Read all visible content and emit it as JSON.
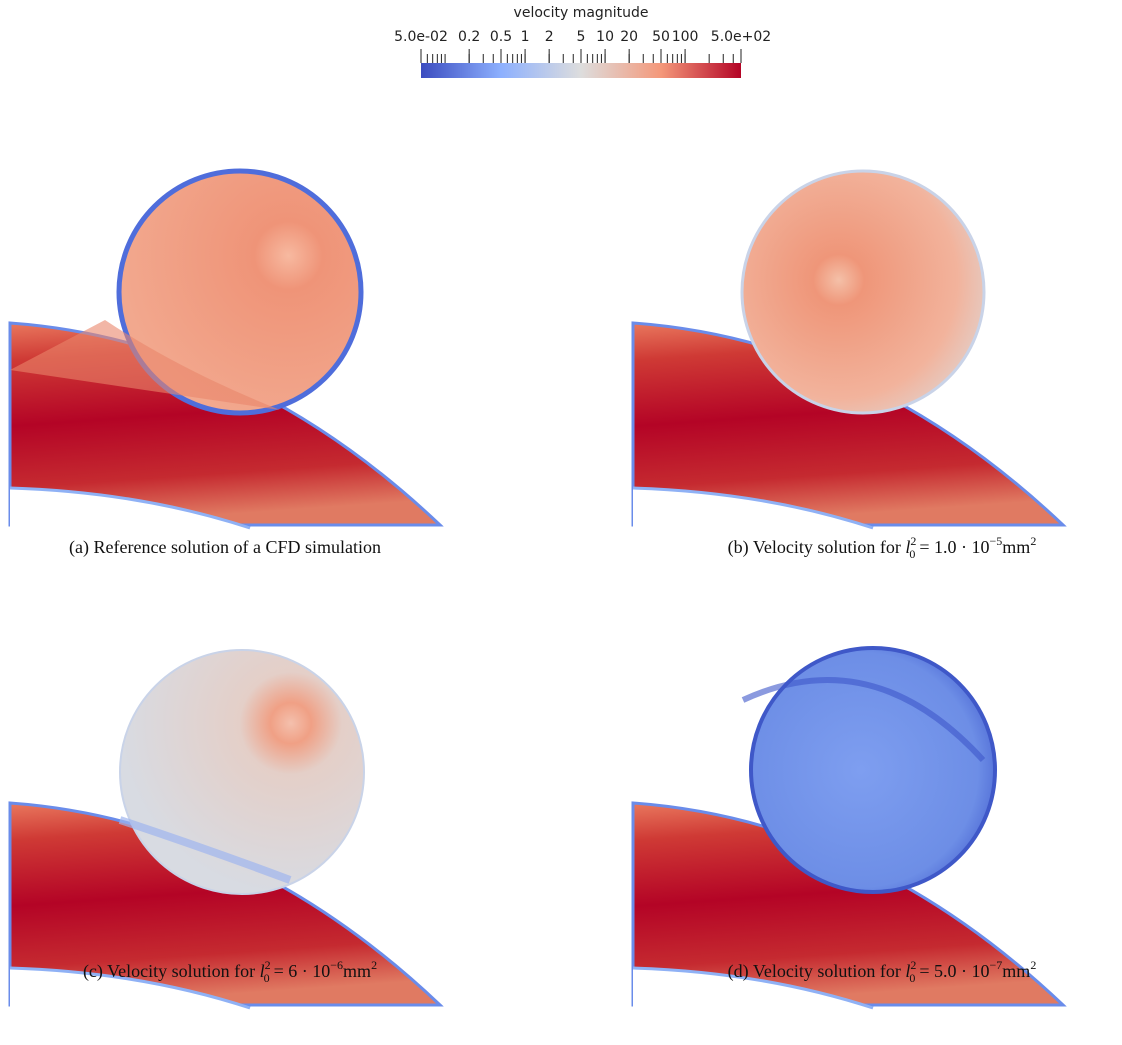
{
  "colorbar": {
    "title": "velocity magnitude",
    "range": [
      0.05,
      500
    ],
    "log": true,
    "ticks": [
      {
        "value": 0.05,
        "label": "5.0e-02"
      },
      0.2,
      0.5,
      1,
      2,
      5,
      10,
      20,
      50,
      100,
      {
        "value": 500,
        "label": "5.0e+02"
      }
    ]
  },
  "captions": [
    {
      "label": "(a)",
      "text": "Reference solution of a CFD simulation"
    },
    {
      "label": "(b)",
      "text": "Velocity solution for",
      "var": "l",
      "sub": "0",
      "sup": "2",
      "eq": "=",
      "coef": "1.0 · 10",
      "exp": "−5",
      "unit": "mm",
      "unit_exp": "2"
    },
    {
      "label": "(c)",
      "text": "Velocity solution for",
      "var": "l",
      "sub": "0",
      "sup": "2",
      "eq": "=",
      "coef": "6 · 10",
      "exp": "−6",
      "unit": "mm",
      "unit_exp": "2"
    },
    {
      "label": "(d)",
      "text": "Velocity solution for",
      "var": "l",
      "sub": "0",
      "sup": "2",
      "eq": "=",
      "coef": "5.0 · 10",
      "exp": "−7",
      "unit": "mm",
      "unit_exp": "2"
    }
  ]
}
